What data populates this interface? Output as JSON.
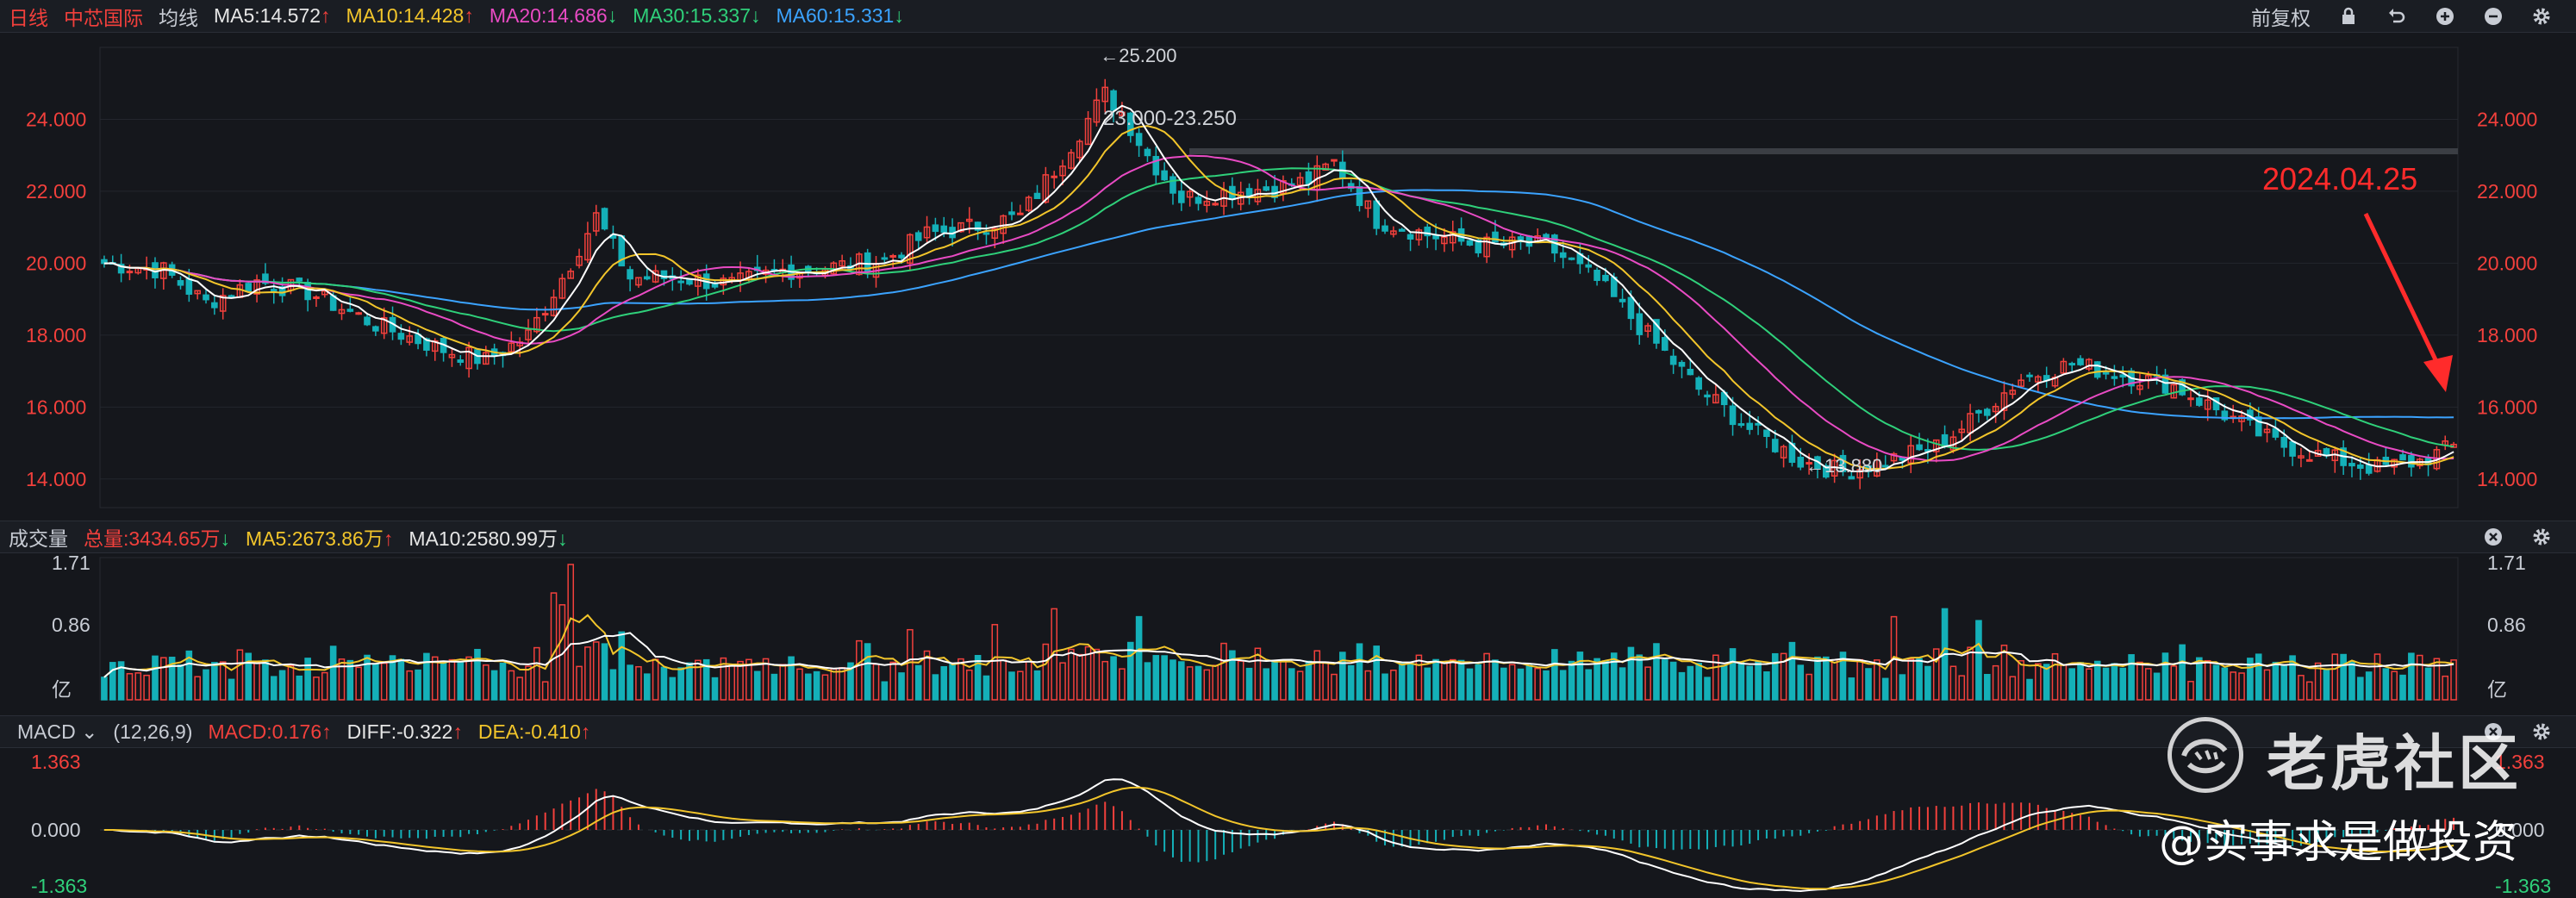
{
  "header": {
    "period": "日线",
    "stock_name": "中芯国际",
    "ma_title": "均线",
    "ma5": "MA5:14.572",
    "ma10": "MA10:14.428",
    "ma20": "MA20:14.686",
    "ma30": "MA30:15.337",
    "ma60": "MA60:15.331",
    "adjust": "前复权"
  },
  "volume_header": {
    "title": "成交量",
    "total": "总量:3434.65万",
    "ma5": "MA5:2673.86万",
    "ma10": "MA10:2580.99万"
  },
  "macd_header": {
    "title": "MACD",
    "params": "(12,26,9)",
    "macd": "MACD:0.176",
    "diff": "DIFF:-0.322",
    "dea": "DEA:-0.410"
  },
  "arrows": {
    "up": "↑",
    "down": "↓"
  },
  "colors": {
    "bg": "#15171c",
    "up": "#f2403c",
    "down": "#14b0b8",
    "ma5": "#ffffff",
    "ma10": "#f2c52b",
    "ma20": "#e94bc4",
    "ma30": "#2fd07a",
    "ma60": "#3ba3ff",
    "annotation": "#ff2b2b"
  },
  "chart_data": [
    {
      "type": "candlestick",
      "title": "",
      "y_ticks": [
        "24.000",
        "22.000",
        "20.000",
        "18.000",
        "16.000",
        "14.000"
      ],
      "ylim": [
        13.3,
        26.0
      ],
      "annotations": {
        "high": "←25.200",
        "low": "←13.880",
        "range": "23.000-23.250",
        "date": "2024.04.25"
      },
      "resistance_level": 23.1,
      "anchors": [
        [
          0,
          20.0
        ],
        [
          7,
          19.8
        ],
        [
          12,
          18.9
        ],
        [
          18,
          19.5
        ],
        [
          24,
          19.2
        ],
        [
          32,
          18.3
        ],
        [
          40,
          17.6
        ],
        [
          45,
          17.3
        ],
        [
          50,
          18.0
        ],
        [
          55,
          20.0
        ],
        [
          58,
          21.3
        ],
        [
          62,
          19.6
        ],
        [
          68,
          19.6
        ],
        [
          74,
          19.4
        ],
        [
          80,
          19.8
        ],
        [
          86,
          19.9
        ],
        [
          92,
          20.1
        ],
        [
          97,
          20.8
        ],
        [
          102,
          21.0
        ],
        [
          108,
          21.3
        ],
        [
          112,
          22.6
        ],
        [
          116,
          24.0
        ],
        [
          118,
          24.7
        ],
        [
          120,
          24.2
        ],
        [
          123,
          23.0
        ],
        [
          127,
          21.8
        ],
        [
          133,
          22.0
        ],
        [
          138,
          22.1
        ],
        [
          142,
          22.3
        ],
        [
          145,
          22.8
        ],
        [
          150,
          21.2
        ],
        [
          156,
          20.8
        ],
        [
          162,
          20.5
        ],
        [
          170,
          20.5
        ],
        [
          176,
          19.5
        ],
        [
          182,
          18.0
        ],
        [
          188,
          16.5
        ],
        [
          194,
          15.4
        ],
        [
          200,
          14.5
        ],
        [
          205,
          14.2
        ],
        [
          210,
          14.5
        ],
        [
          216,
          14.9
        ],
        [
          220,
          15.6
        ],
        [
          226,
          16.8
        ],
        [
          232,
          17.2
        ],
        [
          238,
          16.9
        ],
        [
          244,
          16.6
        ],
        [
          250,
          15.8
        ],
        [
          256,
          15.0
        ],
        [
          262,
          14.6
        ],
        [
          268,
          14.3
        ],
        [
          273,
          14.5
        ],
        [
          277,
          14.9
        ]
      ],
      "candles_count": 278
    },
    {
      "type": "bar",
      "title": "",
      "y_ticks": [
        "1.71",
        "0.86",
        "亿"
      ],
      "unit": "亿",
      "ylim": [
        0,
        1.71
      ]
    },
    {
      "type": "bar",
      "title": "",
      "y_ticks": [
        "1.363",
        "0.000",
        "-1.363"
      ],
      "ylim": [
        -1.363,
        1.363
      ]
    }
  ],
  "watermark": {
    "brand": "老虎社区",
    "user": "@实事求是做投资"
  }
}
